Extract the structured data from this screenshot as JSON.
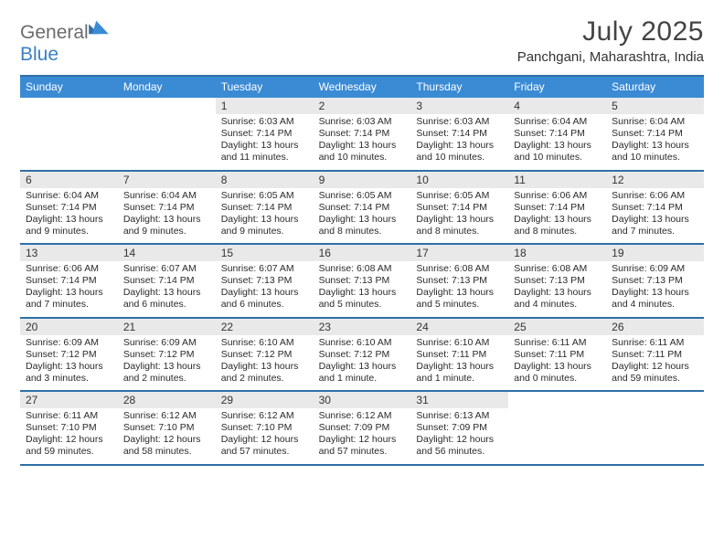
{
  "brand": {
    "part1": "General",
    "part2": "Blue"
  },
  "title": "July 2025",
  "location": "Panchgani, Maharashtra, India",
  "colors": {
    "header_bg": "#3b8bd4",
    "rule": "#2f6fa8",
    "daynum_bg": "#e9e9e9",
    "text": "#2a2a2a"
  },
  "dow": [
    "Sunday",
    "Monday",
    "Tuesday",
    "Wednesday",
    "Thursday",
    "Friday",
    "Saturday"
  ],
  "weeks": [
    [
      null,
      null,
      {
        "n": "1",
        "sr": "Sunrise: 6:03 AM",
        "ss": "Sunset: 7:14 PM",
        "d1": "Daylight: 13 hours",
        "d2": "and 11 minutes."
      },
      {
        "n": "2",
        "sr": "Sunrise: 6:03 AM",
        "ss": "Sunset: 7:14 PM",
        "d1": "Daylight: 13 hours",
        "d2": "and 10 minutes."
      },
      {
        "n": "3",
        "sr": "Sunrise: 6:03 AM",
        "ss": "Sunset: 7:14 PM",
        "d1": "Daylight: 13 hours",
        "d2": "and 10 minutes."
      },
      {
        "n": "4",
        "sr": "Sunrise: 6:04 AM",
        "ss": "Sunset: 7:14 PM",
        "d1": "Daylight: 13 hours",
        "d2": "and 10 minutes."
      },
      {
        "n": "5",
        "sr": "Sunrise: 6:04 AM",
        "ss": "Sunset: 7:14 PM",
        "d1": "Daylight: 13 hours",
        "d2": "and 10 minutes."
      }
    ],
    [
      {
        "n": "6",
        "sr": "Sunrise: 6:04 AM",
        "ss": "Sunset: 7:14 PM",
        "d1": "Daylight: 13 hours",
        "d2": "and 9 minutes."
      },
      {
        "n": "7",
        "sr": "Sunrise: 6:04 AM",
        "ss": "Sunset: 7:14 PM",
        "d1": "Daylight: 13 hours",
        "d2": "and 9 minutes."
      },
      {
        "n": "8",
        "sr": "Sunrise: 6:05 AM",
        "ss": "Sunset: 7:14 PM",
        "d1": "Daylight: 13 hours",
        "d2": "and 9 minutes."
      },
      {
        "n": "9",
        "sr": "Sunrise: 6:05 AM",
        "ss": "Sunset: 7:14 PM",
        "d1": "Daylight: 13 hours",
        "d2": "and 8 minutes."
      },
      {
        "n": "10",
        "sr": "Sunrise: 6:05 AM",
        "ss": "Sunset: 7:14 PM",
        "d1": "Daylight: 13 hours",
        "d2": "and 8 minutes."
      },
      {
        "n": "11",
        "sr": "Sunrise: 6:06 AM",
        "ss": "Sunset: 7:14 PM",
        "d1": "Daylight: 13 hours",
        "d2": "and 8 minutes."
      },
      {
        "n": "12",
        "sr": "Sunrise: 6:06 AM",
        "ss": "Sunset: 7:14 PM",
        "d1": "Daylight: 13 hours",
        "d2": "and 7 minutes."
      }
    ],
    [
      {
        "n": "13",
        "sr": "Sunrise: 6:06 AM",
        "ss": "Sunset: 7:14 PM",
        "d1": "Daylight: 13 hours",
        "d2": "and 7 minutes."
      },
      {
        "n": "14",
        "sr": "Sunrise: 6:07 AM",
        "ss": "Sunset: 7:14 PM",
        "d1": "Daylight: 13 hours",
        "d2": "and 6 minutes."
      },
      {
        "n": "15",
        "sr": "Sunrise: 6:07 AM",
        "ss": "Sunset: 7:13 PM",
        "d1": "Daylight: 13 hours",
        "d2": "and 6 minutes."
      },
      {
        "n": "16",
        "sr": "Sunrise: 6:08 AM",
        "ss": "Sunset: 7:13 PM",
        "d1": "Daylight: 13 hours",
        "d2": "and 5 minutes."
      },
      {
        "n": "17",
        "sr": "Sunrise: 6:08 AM",
        "ss": "Sunset: 7:13 PM",
        "d1": "Daylight: 13 hours",
        "d2": "and 5 minutes."
      },
      {
        "n": "18",
        "sr": "Sunrise: 6:08 AM",
        "ss": "Sunset: 7:13 PM",
        "d1": "Daylight: 13 hours",
        "d2": "and 4 minutes."
      },
      {
        "n": "19",
        "sr": "Sunrise: 6:09 AM",
        "ss": "Sunset: 7:13 PM",
        "d1": "Daylight: 13 hours",
        "d2": "and 4 minutes."
      }
    ],
    [
      {
        "n": "20",
        "sr": "Sunrise: 6:09 AM",
        "ss": "Sunset: 7:12 PM",
        "d1": "Daylight: 13 hours",
        "d2": "and 3 minutes."
      },
      {
        "n": "21",
        "sr": "Sunrise: 6:09 AM",
        "ss": "Sunset: 7:12 PM",
        "d1": "Daylight: 13 hours",
        "d2": "and 2 minutes."
      },
      {
        "n": "22",
        "sr": "Sunrise: 6:10 AM",
        "ss": "Sunset: 7:12 PM",
        "d1": "Daylight: 13 hours",
        "d2": "and 2 minutes."
      },
      {
        "n": "23",
        "sr": "Sunrise: 6:10 AM",
        "ss": "Sunset: 7:12 PM",
        "d1": "Daylight: 13 hours",
        "d2": "and 1 minute."
      },
      {
        "n": "24",
        "sr": "Sunrise: 6:10 AM",
        "ss": "Sunset: 7:11 PM",
        "d1": "Daylight: 13 hours",
        "d2": "and 1 minute."
      },
      {
        "n": "25",
        "sr": "Sunrise: 6:11 AM",
        "ss": "Sunset: 7:11 PM",
        "d1": "Daylight: 13 hours",
        "d2": "and 0 minutes."
      },
      {
        "n": "26",
        "sr": "Sunrise: 6:11 AM",
        "ss": "Sunset: 7:11 PM",
        "d1": "Daylight: 12 hours",
        "d2": "and 59 minutes."
      }
    ],
    [
      {
        "n": "27",
        "sr": "Sunrise: 6:11 AM",
        "ss": "Sunset: 7:10 PM",
        "d1": "Daylight: 12 hours",
        "d2": "and 59 minutes."
      },
      {
        "n": "28",
        "sr": "Sunrise: 6:12 AM",
        "ss": "Sunset: 7:10 PM",
        "d1": "Daylight: 12 hours",
        "d2": "and 58 minutes."
      },
      {
        "n": "29",
        "sr": "Sunrise: 6:12 AM",
        "ss": "Sunset: 7:10 PM",
        "d1": "Daylight: 12 hours",
        "d2": "and 57 minutes."
      },
      {
        "n": "30",
        "sr": "Sunrise: 6:12 AM",
        "ss": "Sunset: 7:09 PM",
        "d1": "Daylight: 12 hours",
        "d2": "and 57 minutes."
      },
      {
        "n": "31",
        "sr": "Sunrise: 6:13 AM",
        "ss": "Sunset: 7:09 PM",
        "d1": "Daylight: 12 hours",
        "d2": "and 56 minutes."
      },
      null,
      null
    ]
  ]
}
